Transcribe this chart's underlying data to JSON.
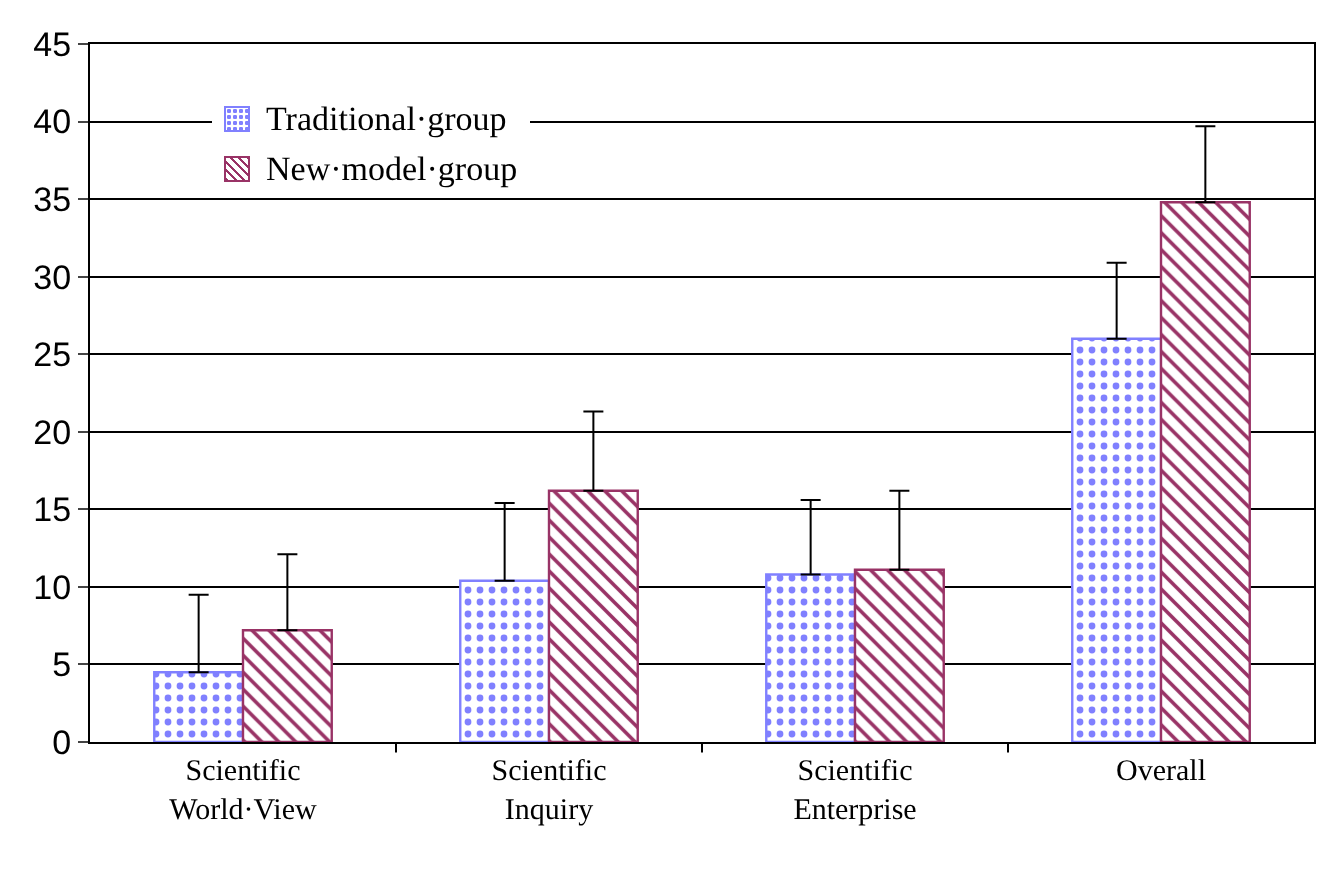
{
  "chart_data": {
    "type": "bar",
    "categories": [
      "Scientific\nWorld·View",
      "Scientific\nInquiry",
      "Scientific\nEnterprise",
      "Overall"
    ],
    "series": [
      {
        "name": "Traditional·group",
        "color": "#8080ff",
        "values": [
          4.5,
          10.4,
          10.8,
          26.0
        ],
        "errors": [
          [
            4.5,
            9.5
          ],
          [
            10.4,
            15.4
          ],
          [
            10.8,
            15.6
          ],
          [
            26.0,
            30.9
          ]
        ]
      },
      {
        "name": "New·model·group",
        "color": "#993366",
        "values": [
          7.2,
          16.2,
          11.1,
          34.8
        ],
        "errors": [
          [
            7.2,
            12.1
          ],
          [
            16.2,
            21.3
          ],
          [
            11.1,
            16.2
          ],
          [
            34.8,
            39.7
          ]
        ]
      }
    ],
    "ylim": [
      0,
      45
    ],
    "yticks": [
      0,
      5,
      10,
      15,
      20,
      25,
      30,
      35,
      40,
      45
    ],
    "grid": "y",
    "legend": "top left"
  }
}
